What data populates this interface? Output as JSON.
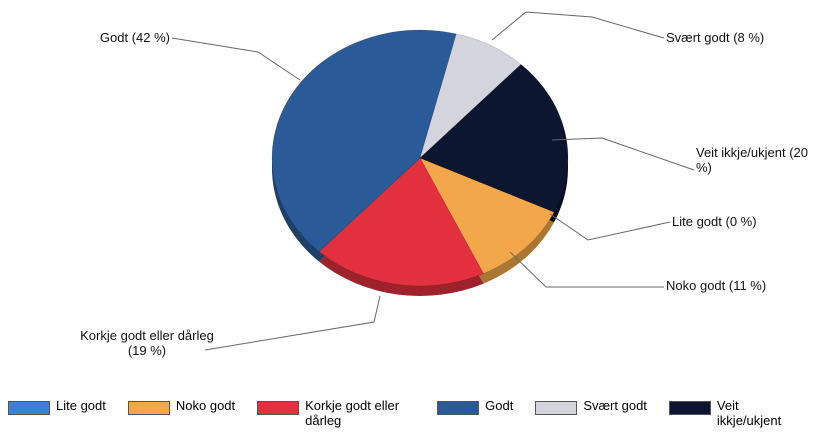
{
  "chart_data": {
    "type": "pie",
    "categories": [
      "Lite godt",
      "Noko godt",
      "Korkje godt eller dårleg",
      "Godt",
      "Svært godt",
      "Veit ikkje/ukjent"
    ],
    "values": [
      0,
      11,
      19,
      42,
      8,
      20
    ],
    "value_labels": [
      "Lite godt (0 %)",
      "Noko godt (11 %)",
      "Korkje godt eller dårleg (19 %)",
      "Godt  (42 %)",
      "Svært godt (8 %)",
      "Veit ikkje/ukjent (20 %)"
    ],
    "colors": [
      "#3c80d8",
      "#f2a84a",
      "#e2303e",
      "#2a5a98",
      "#d4d4dc",
      "#0d1630"
    ],
    "legend": "bottom"
  }
}
